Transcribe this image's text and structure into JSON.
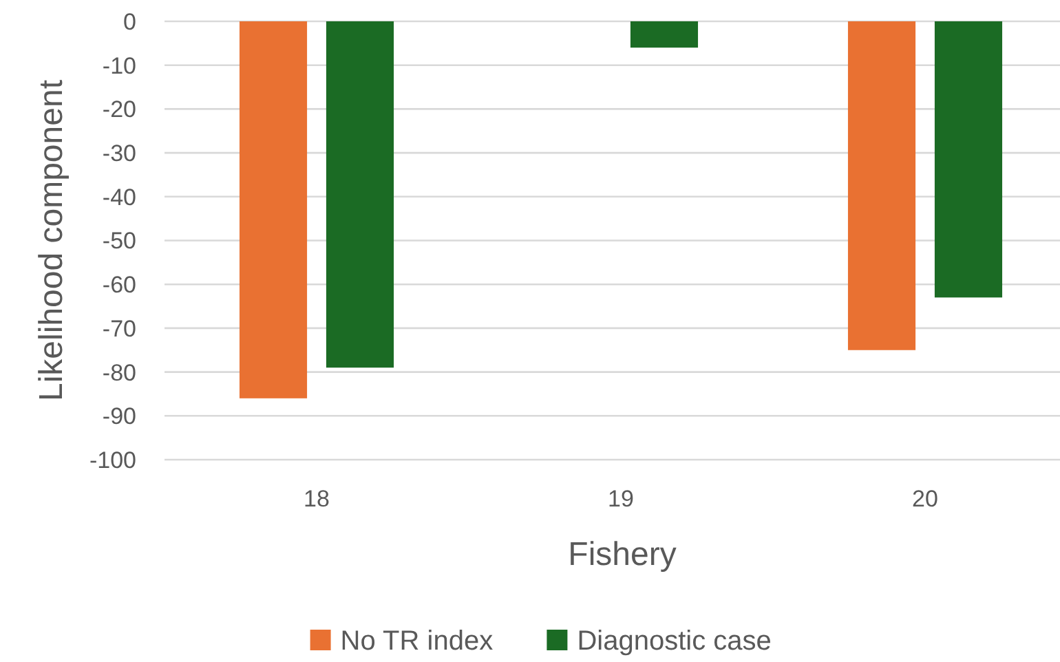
{
  "chart_data": {
    "type": "bar",
    "xlabel": "Fishery",
    "ylabel": "Likelihood component",
    "categories": [
      "18",
      "19",
      "20"
    ],
    "series": [
      {
        "name": "No TR index",
        "color": "#e97132",
        "values": [
          -86,
          null,
          -75
        ]
      },
      {
        "name": "Diagnostic case",
        "color": "#1b6b24",
        "values": [
          -79,
          -6,
          -63
        ]
      }
    ],
    "ylim": [
      -100,
      0
    ],
    "yticks": [
      0,
      -10,
      -20,
      -30,
      -40,
      -50,
      -60,
      -70,
      -80,
      -90,
      -100
    ],
    "grid": "y",
    "legend": "bottom"
  }
}
